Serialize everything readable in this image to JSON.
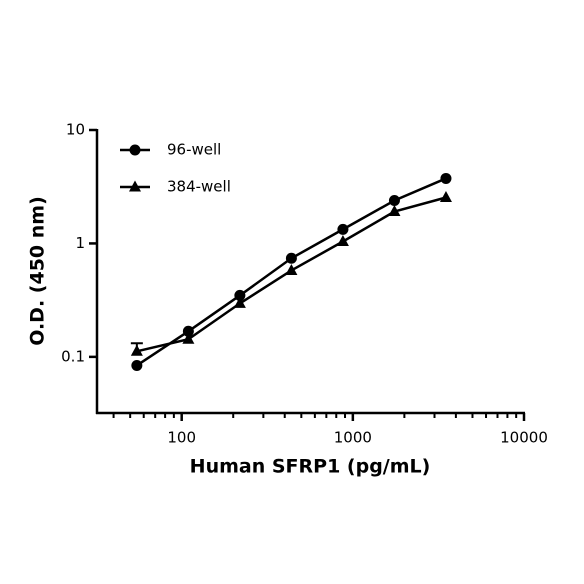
{
  "chart_data": {
    "type": "line",
    "x_label": "Human SFRP1 (pg/mL)",
    "y_label": "O.D. (450 nm)",
    "x": [
      54.7,
      109.4,
      218.75,
      437.5,
      875,
      1750,
      3500
    ],
    "series": [
      {
        "name": "96-well",
        "color": "#000000",
        "marker": "circle",
        "values": [
          0.084,
          0.168,
          0.348,
          0.74,
          1.33,
          2.39,
          3.74
        ]
      },
      {
        "name": "384-well",
        "color": "#000000",
        "marker": "triangle",
        "values": [
          0.112,
          0.143,
          0.296,
          0.578,
          1.04,
          1.91,
          2.54
        ],
        "errors": [
          0.02,
          null,
          null,
          null,
          null,
          null,
          null
        ]
      }
    ],
    "xlim": [
      32,
      10000
    ],
    "ylim": [
      0.032,
      10
    ],
    "xticks": [
      100,
      1000,
      10000
    ],
    "yticks": [
      0.1,
      1,
      10
    ],
    "xminorticks": [
      40,
      50,
      60,
      70,
      80,
      90,
      200,
      300,
      400,
      500,
      600,
      700,
      800,
      900,
      2000,
      3000,
      4000,
      5000,
      6000,
      7000,
      8000,
      9000
    ],
    "xscale": "log",
    "yscale": "log",
    "grid": false,
    "legend": "upper left"
  }
}
